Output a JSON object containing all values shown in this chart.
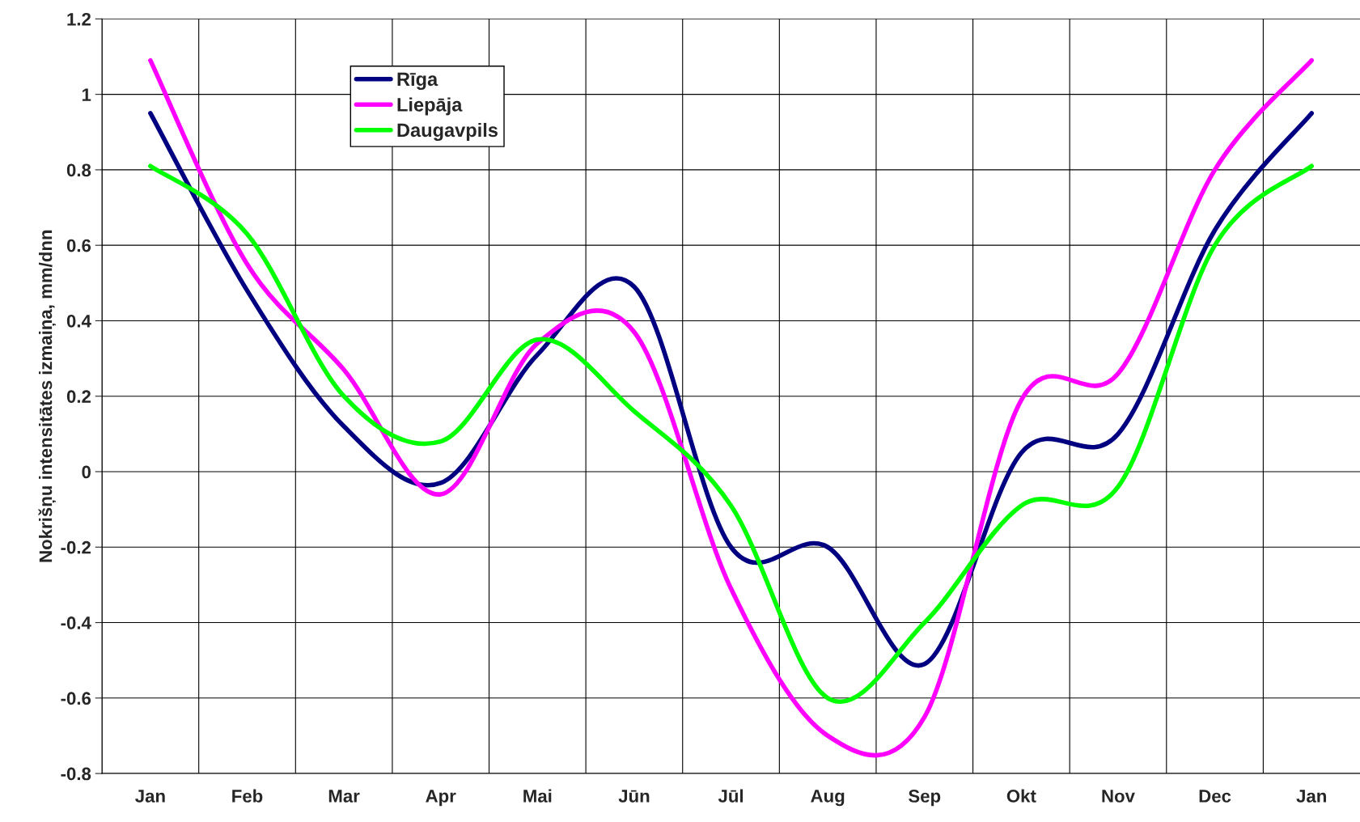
{
  "chart_data": {
    "type": "line",
    "ylabel": "Nokrišņu intensitātes izmaiņa, mm/dnn",
    "categories": [
      "Jan",
      "Feb",
      "Mar",
      "Apr",
      "Mai",
      "Jūn",
      "Jūl",
      "Aug",
      "Sep",
      "Okt",
      "Nov",
      "Dec",
      "Jan"
    ],
    "series": [
      {
        "name": "Rīga",
        "color": "#000080",
        "values": [
          0.95,
          0.48,
          0.12,
          -0.03,
          0.31,
          0.49,
          -0.2,
          -0.2,
          -0.51,
          0.05,
          0.1,
          0.64,
          0.95
        ]
      },
      {
        "name": "Liepāja",
        "color": "#ff00ff",
        "values": [
          1.09,
          0.55,
          0.27,
          -0.06,
          0.34,
          0.37,
          -0.31,
          -0.7,
          -0.65,
          0.19,
          0.26,
          0.8,
          1.09
        ]
      },
      {
        "name": "Daugavpils",
        "color": "#00ff00",
        "values": [
          0.81,
          0.63,
          0.2,
          0.08,
          0.35,
          0.16,
          -0.09,
          -0.6,
          -0.4,
          -0.09,
          -0.04,
          0.6,
          0.81
        ]
      }
    ],
    "ylim": [
      -0.8,
      1.2
    ],
    "yticks": [
      -0.8,
      -0.6,
      -0.4,
      -0.2,
      0,
      0.2,
      0.4,
      0.6,
      0.8,
      1,
      1.2
    ],
    "grid": true,
    "legend": "top left",
    "marker": "none",
    "line_style": "solid"
  }
}
